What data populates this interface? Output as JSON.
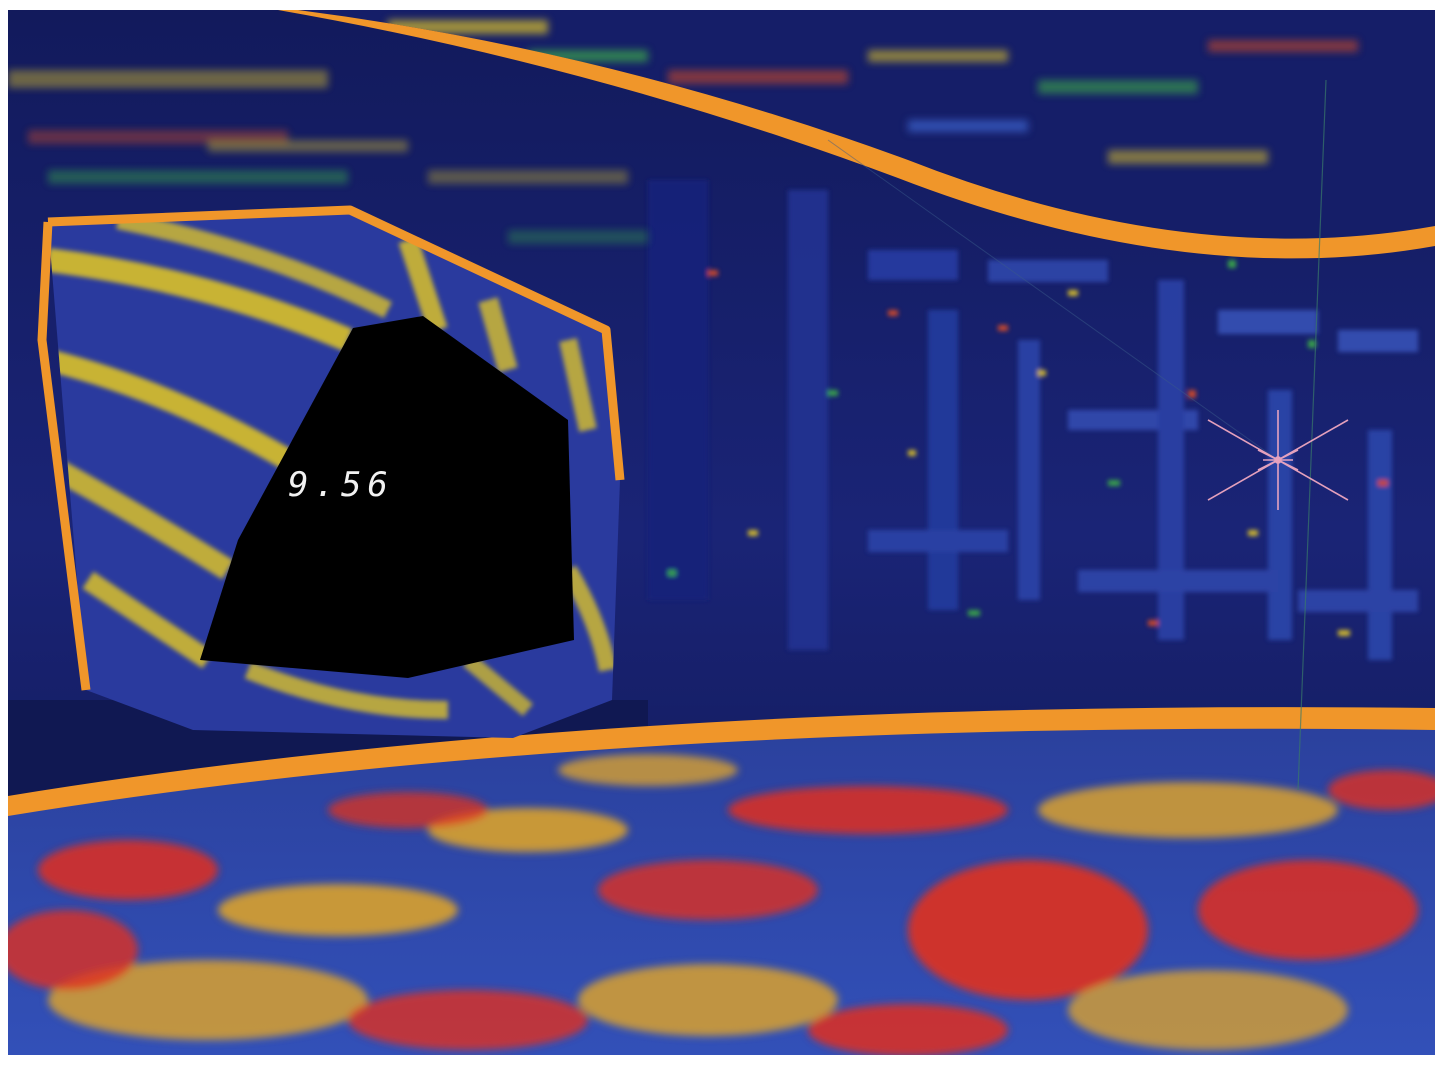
{
  "hud": {
    "readout": "9.56"
  },
  "colors": {
    "wall_dark": "#0d1448",
    "wall_mid": "#1c2a86",
    "trim_orange": "#f0962a",
    "floor_blue": "#2f4fb8",
    "floor_red": "#e0301e",
    "floor_gold": "#d9a12e",
    "portal_yellow": "#d9c02a",
    "portal_void": "#000000",
    "crosshair": "#f0a8c0"
  },
  "icons": {
    "crosshair": "crosshair-star-icon"
  }
}
